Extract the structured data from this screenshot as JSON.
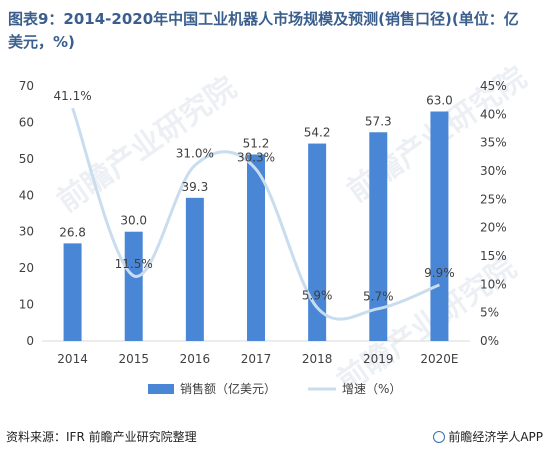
{
  "title": "图表9：2014-2020年中国工业机器人市场规模及预测(销售口径)(单位：亿美元，%)",
  "source": "资料来源：IFR 前瞻产业研究院整理",
  "brand": "前瞻经济学人APP",
  "watermark": "前瞻产业研究院",
  "colors": {
    "bar": "#4a86d6",
    "line": "#c9ddef",
    "title": "#3a5f8c"
  },
  "chart_data": {
    "type": "bar",
    "categories": [
      "2014",
      "2015",
      "2016",
      "2017",
      "2018",
      "2019",
      "2020E"
    ],
    "series": [
      {
        "name": "销售额（亿美元）",
        "type": "bar",
        "axis": "left",
        "values": [
          26.8,
          30.0,
          39.3,
          51.2,
          54.2,
          57.3,
          63.0
        ],
        "labels": [
          "26.8",
          "30.0",
          "39.3",
          "51.2",
          "54.2",
          "57.3",
          "63.0"
        ]
      },
      {
        "name": "增速（%）",
        "type": "line",
        "axis": "right",
        "values": [
          41.1,
          11.5,
          31.0,
          30.3,
          5.9,
          5.7,
          9.9
        ],
        "labels": [
          "41.1%",
          "11.5%",
          "31.0%",
          "30.3%",
          "5.9%",
          "5.7%",
          "9.9%"
        ]
      }
    ],
    "y_left": {
      "min": 0,
      "max": 70,
      "step": 10,
      "ticks": [
        "0",
        "10",
        "20",
        "30",
        "40",
        "50",
        "60",
        "70"
      ]
    },
    "y_right": {
      "min": 0,
      "max": 45,
      "step": 5,
      "ticks": [
        "0%",
        "5%",
        "10%",
        "15%",
        "20%",
        "25%",
        "30%",
        "35%",
        "40%",
        "45%"
      ]
    },
    "legend": "bottom",
    "grid": false
  }
}
